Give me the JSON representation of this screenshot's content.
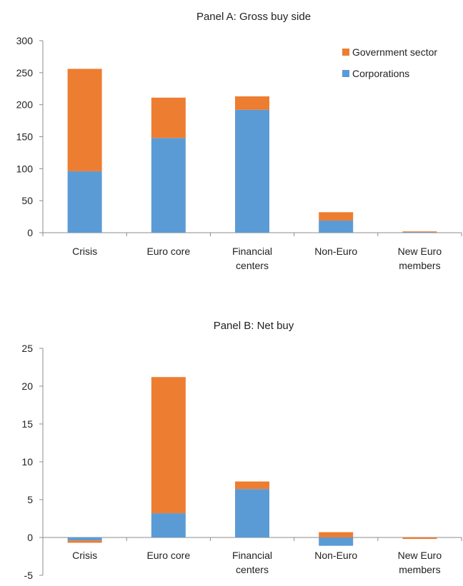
{
  "chart_data": [
    {
      "type": "bar",
      "stacked": true,
      "title": "Panel A: Gross buy side",
      "categories": [
        [
          "Crisis"
        ],
        [
          "Euro core"
        ],
        [
          "Financial",
          "centers"
        ],
        [
          "Non-Euro"
        ],
        [
          "New Euro",
          "members"
        ]
      ],
      "series": [
        {
          "name": "Corporations",
          "color": "#5b9bd5",
          "values": [
            96,
            148,
            192,
            19,
            1
          ]
        },
        {
          "name": "Government sector",
          "color": "#ed7d31",
          "values": [
            160,
            63,
            21,
            13,
            1
          ]
        }
      ],
      "ylim": [
        0,
        300
      ],
      "yticks": [
        "0",
        "50",
        "100",
        "150",
        "200",
        "250",
        "300"
      ],
      "grid": false,
      "legend": "top-right"
    },
    {
      "type": "bar",
      "stacked": true,
      "title": "Panel B: Net buy",
      "categories": [
        [
          "Crisis"
        ],
        [
          "Euro core"
        ],
        [
          "Financial",
          "centers"
        ],
        [
          "Non-Euro"
        ],
        [
          "New Euro",
          "members"
        ]
      ],
      "series": [
        {
          "name": "Corporations",
          "color": "#5b9bd5",
          "values": [
            -0.4,
            3.2,
            6.4,
            -1.1,
            0
          ]
        },
        {
          "name": "Government sector",
          "color": "#ed7d31",
          "values": [
            -0.3,
            18.0,
            1.0,
            0.7,
            -0.2
          ]
        }
      ],
      "ylim": [
        -5,
        25
      ],
      "yticks": [
        "-5",
        "0",
        "5",
        "10",
        "15",
        "20",
        "25"
      ],
      "grid": false,
      "legend": "none"
    }
  ]
}
